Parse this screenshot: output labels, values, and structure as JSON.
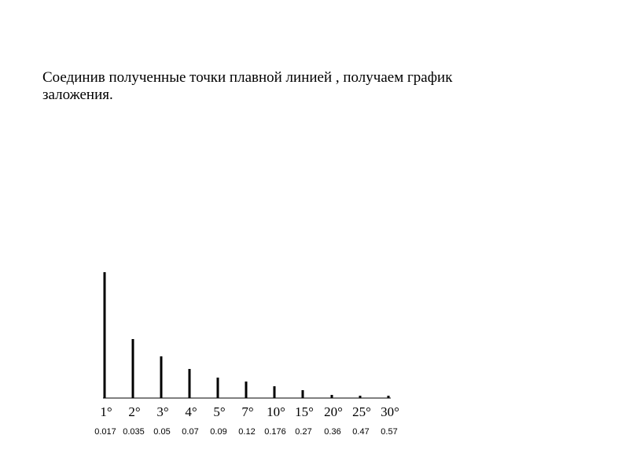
{
  "caption": {
    "line1": "Соединив полученные точки плавной линией , получаем график",
    "line2": "заложения."
  },
  "chart_data": {
    "type": "bar",
    "title": "",
    "xlabel": "",
    "ylabel": "",
    "categories": [
      "1°",
      "2°",
      "3°",
      "4°",
      "5°",
      "7°",
      "10°",
      "15°",
      "20°",
      "25°",
      "30°"
    ],
    "value_labels": [
      "0.017",
      "0.035",
      "0.05",
      "0.07",
      "0.09",
      "0.12",
      "0.176",
      "0.27",
      "0.36",
      "0.47",
      "0.57"
    ],
    "values": [
      160,
      75,
      53,
      37,
      26,
      21,
      15,
      10,
      4,
      3,
      3
    ],
    "colors": {
      "bar": "#000000",
      "axis": "#000000"
    }
  }
}
